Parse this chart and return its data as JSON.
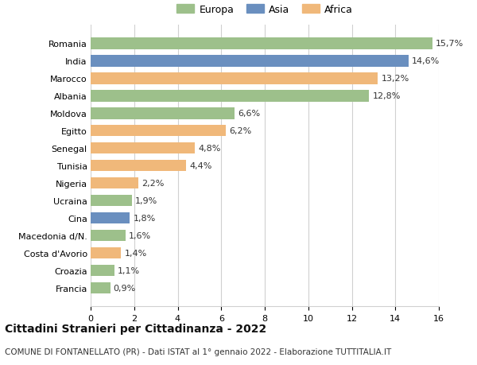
{
  "categories": [
    "Francia",
    "Croazia",
    "Costa d'Avorio",
    "Macedonia d/N.",
    "Cina",
    "Ucraina",
    "Nigeria",
    "Tunisia",
    "Senegal",
    "Egitto",
    "Moldova",
    "Albania",
    "Marocco",
    "India",
    "Romania"
  ],
  "values": [
    0.9,
    1.1,
    1.4,
    1.6,
    1.8,
    1.9,
    2.2,
    4.4,
    4.8,
    6.2,
    6.6,
    12.8,
    13.2,
    14.6,
    15.7
  ],
  "continents": [
    "Europa",
    "Europa",
    "Africa",
    "Europa",
    "Asia",
    "Europa",
    "Africa",
    "Africa",
    "Africa",
    "Africa",
    "Europa",
    "Europa",
    "Africa",
    "Asia",
    "Europa"
  ],
  "colors": {
    "Europa": "#9dc08b",
    "Asia": "#6a8fbf",
    "Africa": "#f0b87a"
  },
  "xlim": [
    0,
    16
  ],
  "xticks": [
    0,
    2,
    4,
    6,
    8,
    10,
    12,
    14,
    16
  ],
  "title": "Cittadini Stranieri per Cittadinanza - 2022",
  "subtitle": "COMUNE DI FONTANELLATO (PR) - Dati ISTAT al 1° gennaio 2022 - Elaborazione TUTTITALIA.IT",
  "background_color": "#ffffff",
  "grid_color": "#d0d0d0",
  "label_fontsize": 8,
  "value_fontsize": 8,
  "title_fontsize": 10,
  "subtitle_fontsize": 7.5,
  "legend_fontsize": 9
}
